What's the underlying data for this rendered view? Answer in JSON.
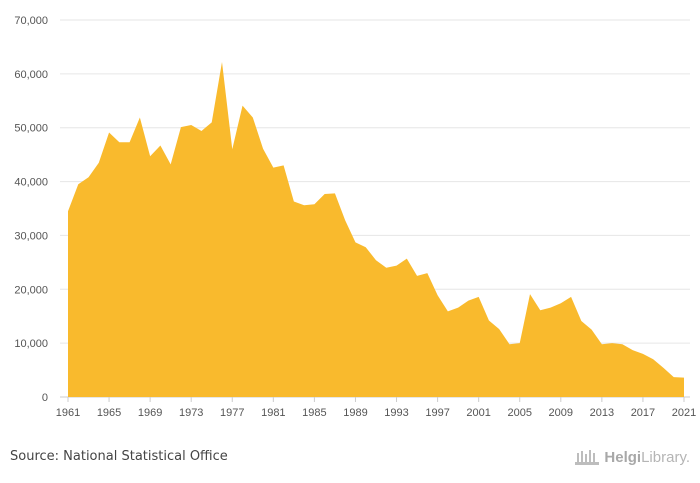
{
  "chart_data": {
    "type": "area",
    "title": "",
    "xlabel": "",
    "ylabel": "",
    "color": "#f9ba2d",
    "grid": true,
    "ylim": [
      0,
      70000
    ],
    "yticks": [
      0,
      10000,
      20000,
      30000,
      40000,
      50000,
      60000,
      70000
    ],
    "ytick_labels": [
      "0",
      "10,000",
      "20,000",
      "30,000",
      "40,000",
      "50,000",
      "60,000",
      "70,000"
    ],
    "xlim": [
      1961,
      2021
    ],
    "xticks": [
      1961,
      1965,
      1969,
      1973,
      1977,
      1981,
      1985,
      1989,
      1993,
      1997,
      2001,
      2005,
      2009,
      2013,
      2017,
      2021
    ],
    "xtick_labels": [
      "1961",
      "1965",
      "1969",
      "1973",
      "1977",
      "1981",
      "1985",
      "1989",
      "1993",
      "1997",
      "2001",
      "2005",
      "2009",
      "2013",
      "2017",
      "2021"
    ],
    "x": [
      1961,
      1962,
      1963,
      1964,
      1965,
      1966,
      1967,
      1968,
      1969,
      1970,
      1971,
      1972,
      1973,
      1974,
      1975,
      1976,
      1977,
      1978,
      1979,
      1980,
      1981,
      1982,
      1983,
      1984,
      1985,
      1986,
      1987,
      1988,
      1989,
      1990,
      1991,
      1992,
      1993,
      1994,
      1995,
      1996,
      1997,
      1998,
      1999,
      2000,
      2001,
      2002,
      2003,
      2004,
      2005,
      2006,
      2007,
      2008,
      2009,
      2010,
      2011,
      2012,
      2013,
      2014,
      2015,
      2016,
      2017,
      2018,
      2019,
      2020,
      2021
    ],
    "values": [
      34500,
      39500,
      40800,
      43500,
      49100,
      47300,
      47300,
      51900,
      44700,
      46700,
      43200,
      50100,
      50500,
      49400,
      51000,
      62200,
      46000,
      54100,
      51900,
      46100,
      42600,
      43000,
      36300,
      35600,
      35800,
      37700,
      37800,
      32800,
      28700,
      27800,
      25400,
      24000,
      24400,
      25700,
      22500,
      23000,
      18900,
      15900,
      16600,
      17900,
      18600,
      14200,
      12600,
      9800,
      10000,
      19100,
      16100,
      16600,
      17400,
      18600,
      14100,
      12500,
      9800,
      10000,
      9800,
      8700,
      8000,
      7000,
      5400,
      3700,
      3600
    ]
  },
  "footer": {
    "source": "Source: National Statistical Office",
    "brand_bold": "Helgi",
    "brand_rest": "Library."
  }
}
